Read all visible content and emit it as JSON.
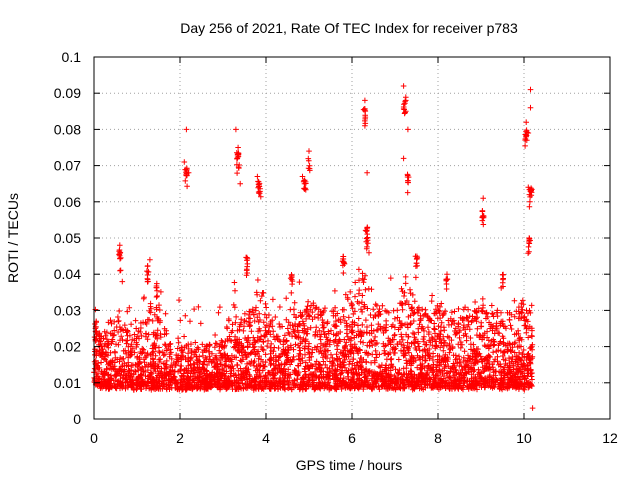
{
  "chart_data": {
    "type": "scatter",
    "title": "Day 256 of 2021, Rate Of TEC Index for receiver p783",
    "xlabel": "GPS time / hours",
    "ylabel": "ROTI / TECUs",
    "xlim": [
      0,
      12
    ],
    "ylim": [
      0,
      0.1
    ],
    "grid": true,
    "marker": "+",
    "marker_color": "#ff0000",
    "x_ticks": [
      0,
      2,
      4,
      6,
      8,
      10,
      12
    ],
    "x_tick_labels": [
      "0",
      "2",
      "4",
      "6",
      "8",
      "10",
      "12"
    ],
    "y_ticks": [
      0,
      0.01,
      0.02,
      0.03,
      0.04,
      0.05,
      0.06,
      0.07,
      0.08,
      0.09,
      0.1
    ],
    "y_tick_labels": [
      "0",
      "0.01",
      "0.02",
      "0.03",
      "0.04",
      "0.05",
      "0.06",
      "0.07",
      "0.08",
      "0.09",
      "0.1"
    ],
    "series": [
      {
        "name": "ROTI",
        "notable_points": [
          {
            "x": 0.05,
            "y": 0.027
          },
          {
            "x": 0.6,
            "y": 0.048
          },
          {
            "x": 1.3,
            "y": 0.044
          },
          {
            "x": 2.1,
            "y": 0.071
          },
          {
            "x": 2.15,
            "y": 0.08
          },
          {
            "x": 2.2,
            "y": 0.068
          },
          {
            "x": 3.3,
            "y": 0.08
          },
          {
            "x": 3.35,
            "y": 0.075
          },
          {
            "x": 3.4,
            "y": 0.065
          },
          {
            "x": 3.8,
            "y": 0.067
          },
          {
            "x": 4.85,
            "y": 0.067
          },
          {
            "x": 5.0,
            "y": 0.074
          },
          {
            "x": 6.3,
            "y": 0.088
          },
          {
            "x": 6.3,
            "y": 0.081
          },
          {
            "x": 6.35,
            "y": 0.068
          },
          {
            "x": 7.2,
            "y": 0.092
          },
          {
            "x": 7.25,
            "y": 0.085
          },
          {
            "x": 7.3,
            "y": 0.08
          },
          {
            "x": 7.2,
            "y": 0.072
          },
          {
            "x": 9.05,
            "y": 0.061
          },
          {
            "x": 10.05,
            "y": 0.082
          },
          {
            "x": 10.1,
            "y": 0.079
          },
          {
            "x": 10.15,
            "y": 0.086
          },
          {
            "x": 10.15,
            "y": 0.091
          },
          {
            "x": 10.1,
            "y": 0.064
          },
          {
            "x": 10.2,
            "y": 0.003
          }
        ],
        "bulk_range": {
          "x": [
            0,
            10.2
          ],
          "y": [
            0.003,
            0.035
          ]
        }
      }
    ]
  }
}
